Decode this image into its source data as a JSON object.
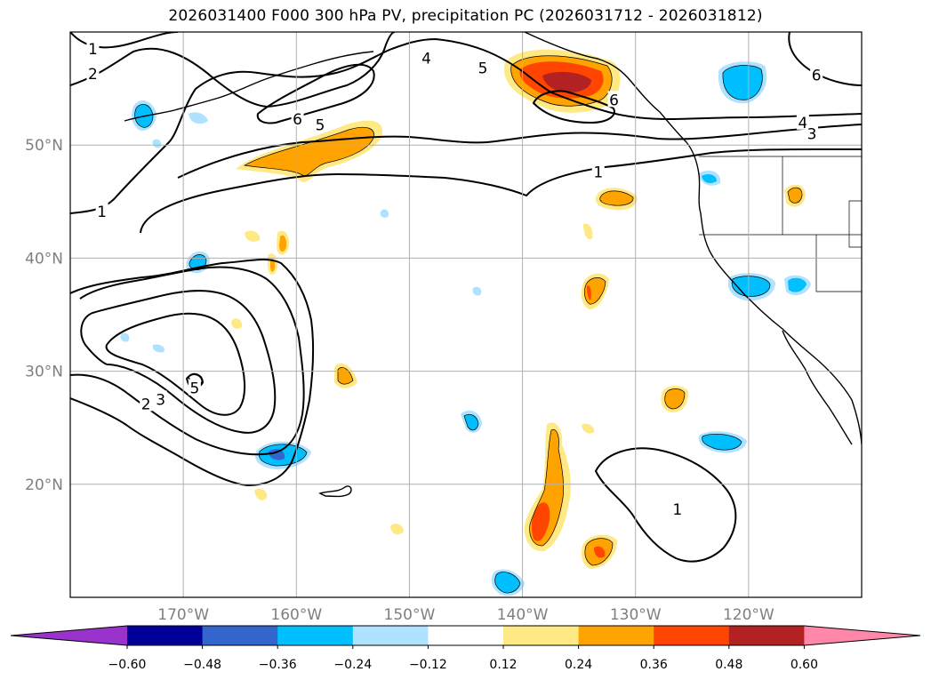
{
  "title": "2026031400 F000 300 hPa PV, precipitation PC (2026031712 - 2026031812)",
  "map": {
    "lat_range": [
      10,
      60
    ],
    "lon_range": [
      -180,
      -110
    ],
    "lat_ticks": [
      {
        "value": 50,
        "label": "50°N"
      },
      {
        "value": 40,
        "label": "40°N"
      },
      {
        "value": 30,
        "label": "30°N"
      },
      {
        "value": 20,
        "label": "20°N"
      }
    ],
    "lon_ticks": [
      {
        "value": -170,
        "label": "170°W"
      },
      {
        "value": -160,
        "label": "160°W"
      },
      {
        "value": -150,
        "label": "150°W"
      },
      {
        "value": -140,
        "label": "140°W"
      },
      {
        "value": -130,
        "label": "130°W"
      },
      {
        "value": -120,
        "label": "120°W"
      }
    ],
    "contour_labels": [
      {
        "text": "1",
        "lon": -178,
        "lat": 58.5
      },
      {
        "text": "2",
        "lon": -178,
        "lat": 56.3
      },
      {
        "text": "4",
        "lon": -148.5,
        "lat": 57.7
      },
      {
        "text": "5",
        "lon": -143.5,
        "lat": 56.8
      },
      {
        "text": "6",
        "lon": -114,
        "lat": 56.2
      },
      {
        "text": "6",
        "lon": -159.9,
        "lat": 52.3
      },
      {
        "text": "5",
        "lon": -157.9,
        "lat": 51.8
      },
      {
        "text": "6",
        "lon": -131.9,
        "lat": 54
      },
      {
        "text": "4",
        "lon": -115.2,
        "lat": 52
      },
      {
        "text": "3",
        "lon": -114.4,
        "lat": 51
      },
      {
        "text": "1",
        "lon": -133.3,
        "lat": 47.6
      },
      {
        "text": "1",
        "lon": -177.2,
        "lat": 44.1
      },
      {
        "text": "2",
        "lon": -173.3,
        "lat": 27.1
      },
      {
        "text": "3",
        "lon": -172,
        "lat": 27.5
      },
      {
        "text": "5",
        "lon": -169,
        "lat": 28.5
      },
      {
        "text": "1",
        "lon": -126.3,
        "lat": 17.8
      }
    ]
  },
  "colorbar": {
    "levels": [
      -0.6,
      -0.48,
      -0.36,
      -0.24,
      -0.12,
      0.12,
      0.24,
      0.36,
      0.48,
      0.6
    ],
    "labels": [
      "−0.60",
      "−0.48",
      "−0.36",
      "−0.24",
      "−0.12",
      "0.12",
      "0.24",
      "0.36",
      "0.48",
      "0.60"
    ],
    "colors": [
      "#9933cc",
      "#000099",
      "#3366cc",
      "#00bfff",
      "#aee2ff",
      "#ffffff",
      "#ffe985",
      "#ffa300",
      "#ff4500",
      "#b22222",
      "#ff88aa"
    ]
  }
}
